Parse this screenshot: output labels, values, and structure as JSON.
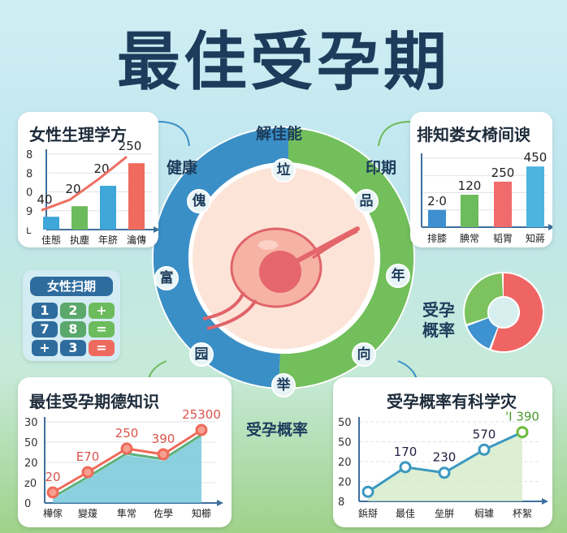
{
  "title": "最佳受孕期",
  "colors": {
    "blue": "#3a8fc6",
    "green": "#6dbb5a",
    "red": "#ef6f62",
    "navy": "#1d3c5c",
    "pink": "#fde4d8"
  },
  "ring": {
    "labels": {
      "top": "解佳能",
      "left": "健康",
      "right": "印期",
      "bottom": "受孕概率"
    },
    "badges": [
      "垃",
      "傀",
      "品",
      "富",
      "年",
      "园",
      "向",
      "举"
    ]
  },
  "calculator": {
    "title": "女性扫期",
    "keys": [
      "1",
      "2",
      "+",
      "7",
      "8",
      "=",
      "+",
      "3",
      "="
    ]
  },
  "donut": {
    "label_line1": "受孕",
    "label_line2": "概率",
    "segments": [
      {
        "color": "#ef6563",
        "share": 0.56
      },
      {
        "color": "#3d93cf",
        "share": 0.14
      },
      {
        "color": "#7cc25e",
        "share": 0.3
      }
    ]
  },
  "chart_data": [
    {
      "type": "bar",
      "title": "女性生理学方",
      "yticks": [
        "8",
        "8",
        "0",
        "9",
        "ʟ"
      ],
      "categories": [
        "佳態",
        "执塵",
        "年脐",
        "瀹傳"
      ],
      "values": [
        0.17,
        0.31,
        0.58,
        0.88
      ],
      "data_labels": [
        "40",
        "20",
        "20",
        "250"
      ],
      "bar_colors": [
        "#3ea6d8",
        "#6cbb5c",
        "#3ea6d8",
        "#f06b5d"
      ],
      "trend_line": true
    },
    {
      "type": "bar",
      "title": "排知娄女椅间谀",
      "yticks": [],
      "categories": [
        "排膝",
        "腆常",
        "韬胃",
        "知蔣"
      ],
      "values": [
        0.25,
        0.47,
        0.66,
        0.88
      ],
      "data_labels": [
        "2·0",
        "120",
        "250",
        "450"
      ],
      "bar_colors": [
        "#3d8fd0",
        "#6cbb5c",
        "#f06b6b",
        "#4db4e0"
      ]
    },
    {
      "type": "area",
      "title": "最佳受孕期德知识",
      "yticks": [
        "30",
        "50",
        "20",
        "z0",
        "0"
      ],
      "categories": [
        "樺傢",
        "變蕿",
        "隼常",
        "佐學",
        "知櫛"
      ],
      "values": [
        0.13,
        0.38,
        0.67,
        0.6,
        0.9
      ],
      "data_labels": [
        "20",
        "E70",
        "250",
        "390",
        "25300"
      ],
      "line_color": "#ef6a5a"
    },
    {
      "type": "area",
      "title": "受孕概率有科学灾",
      "yticks": [
        "50",
        "50",
        "20",
        "20",
        "8"
      ],
      "categories": [
        "鋲搿",
        "最佳",
        "垒腁",
        "榈璩",
        "杯絮"
      ],
      "values": [
        0.12,
        0.43,
        0.36,
        0.65,
        0.87
      ],
      "data_labels": [
        "",
        "170",
        "230",
        "570",
        "'I 390"
      ],
      "line_color": "#3b98c0"
    }
  ]
}
